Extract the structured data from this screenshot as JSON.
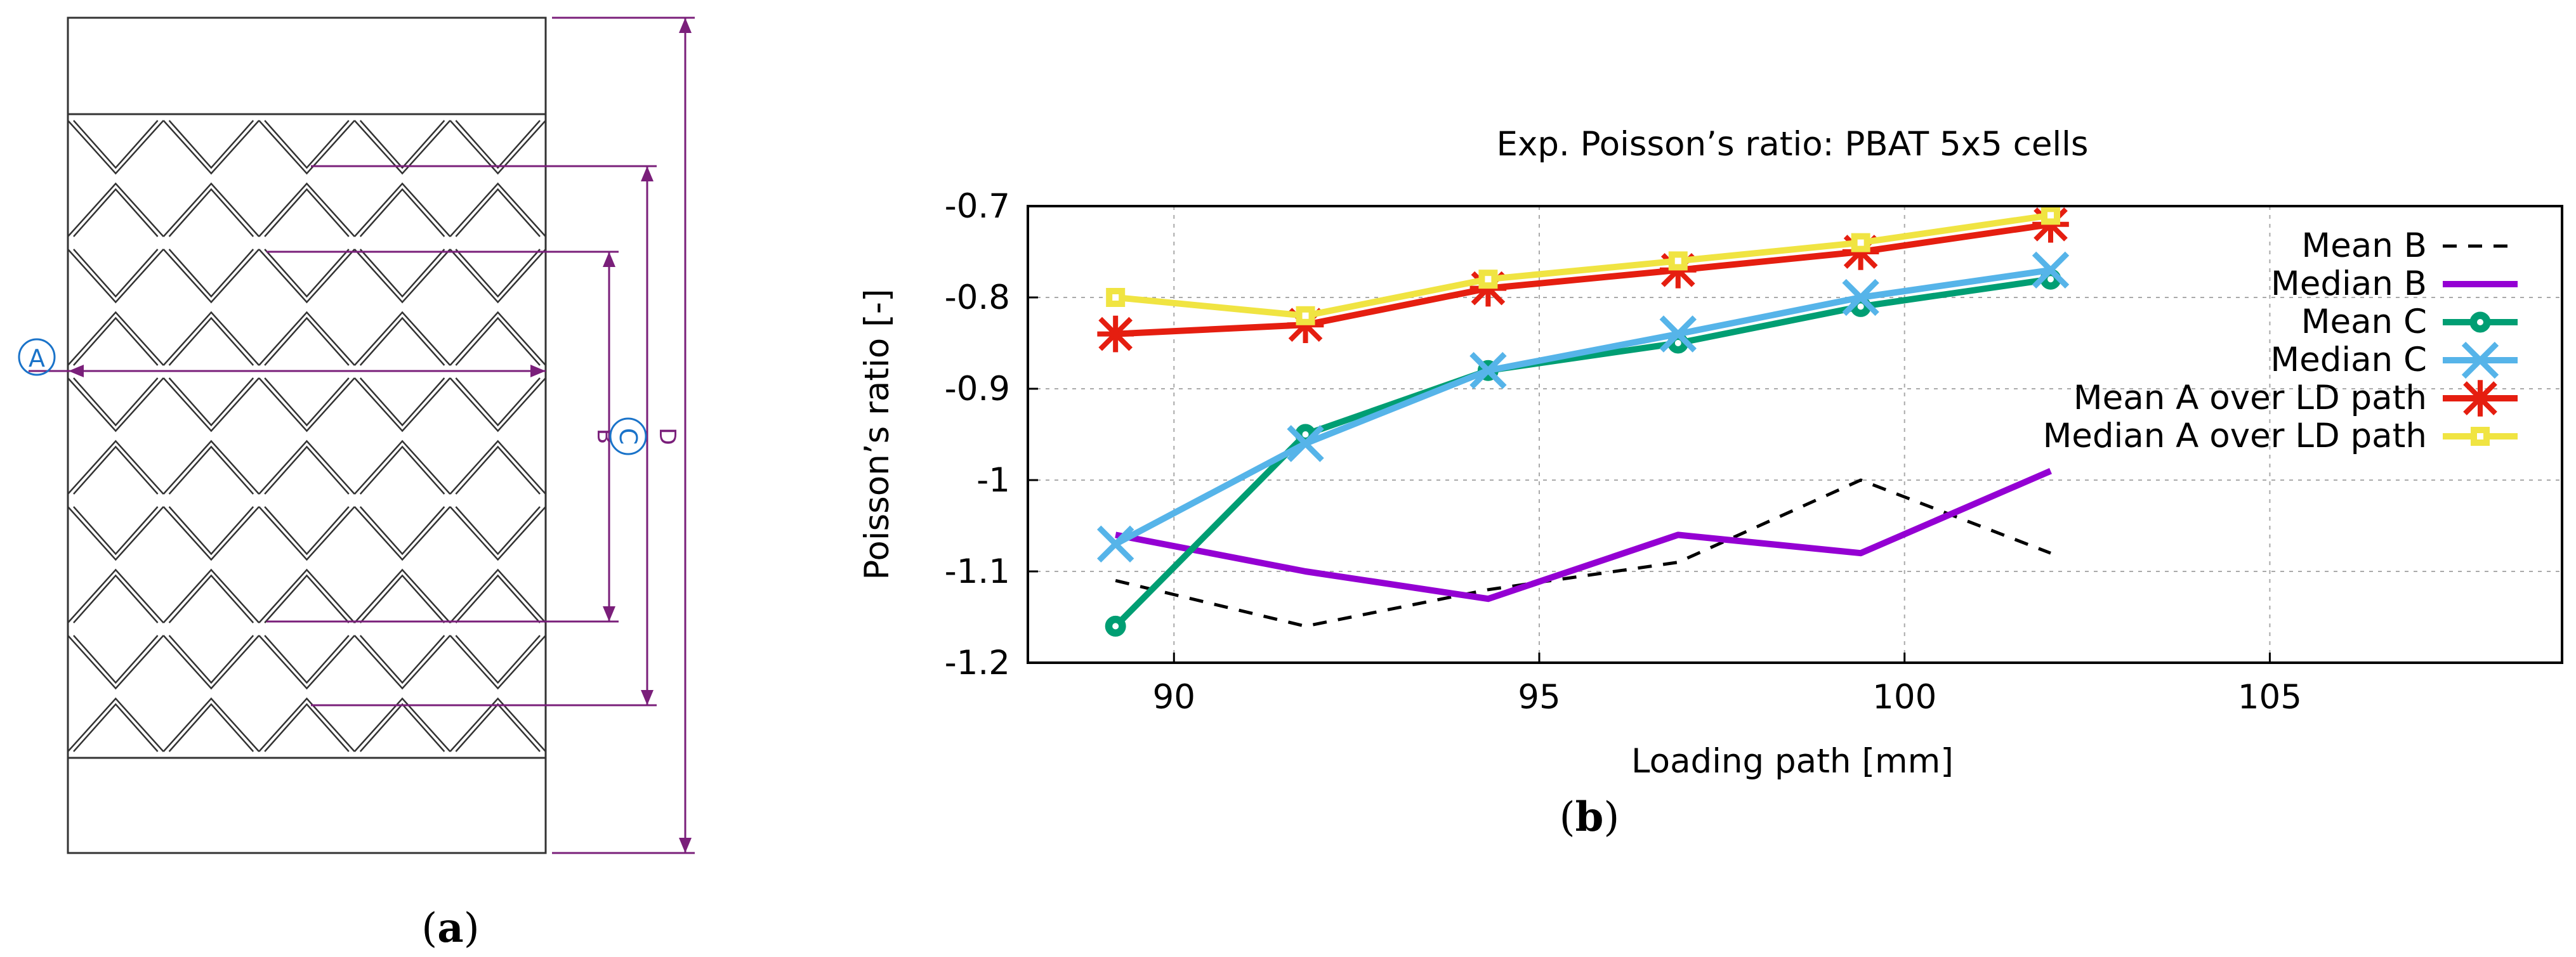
{
  "panel_a": {
    "caption_open": "(",
    "caption_letter": "a",
    "caption_close": ")",
    "dimension_labels": {
      "a": "A",
      "b": "B",
      "c": "C",
      "d": "D"
    },
    "colors": {
      "dimension": "#7a1f7a",
      "callout": "#1a73c9",
      "outline": "#333333"
    }
  },
  "panel_b": {
    "caption_open": "(",
    "caption_letter": "b",
    "caption_close": ")"
  },
  "chart_data": {
    "type": "line",
    "title": "Exp. Poisson’s ratio: PBAT 5x5 cells",
    "xlabel": "Loading path [mm]",
    "ylabel": "Poisson’s ratio [-]",
    "xlim": [
      88,
      109
    ],
    "ylim": [
      -1.2,
      -0.7
    ],
    "xticks": [
      90,
      95,
      100,
      105
    ],
    "xtick_labels": [
      "90",
      "95",
      "100",
      "105"
    ],
    "yticks": [
      -0.7,
      -0.8,
      -0.9,
      -1.0,
      -1.1,
      -1.2
    ],
    "ytick_labels": [
      "-0.7",
      "-0.8",
      "-0.9",
      "-1",
      "-1.1",
      "-1.2"
    ],
    "grid": true,
    "legend_position": "top-right",
    "series": [
      {
        "name": "Mean B",
        "color": "#000000",
        "style": "dashed",
        "marker": "none",
        "x": [
          89.2,
          91.8,
          94.3,
          96.9,
          99.4,
          102.0
        ],
        "y": [
          -1.11,
          -1.16,
          -1.12,
          -1.09,
          -1.0,
          -1.08
        ]
      },
      {
        "name": "Median B",
        "color": "#9400d3",
        "style": "solid",
        "marker": "none",
        "x": [
          89.2,
          91.8,
          94.3,
          96.9,
          99.4,
          102.0
        ],
        "y": [
          -1.06,
          -1.1,
          -1.13,
          -1.06,
          -1.08,
          -0.99
        ]
      },
      {
        "name": "Mean C",
        "color": "#009e73",
        "style": "solid",
        "marker": "circle",
        "x": [
          89.2,
          91.8,
          94.3,
          96.9,
          99.4,
          102.0
        ],
        "y": [
          -1.16,
          -0.95,
          -0.88,
          -0.85,
          -0.81,
          -0.78
        ]
      },
      {
        "name": "Median C",
        "color": "#56b4e9",
        "style": "solid",
        "marker": "x",
        "x": [
          89.2,
          91.8,
          94.3,
          96.9,
          99.4,
          102.0
        ],
        "y": [
          -1.07,
          -0.96,
          -0.88,
          -0.84,
          -0.8,
          -0.77
        ]
      },
      {
        "name": "Mean A over LD path",
        "color": "#e51e10",
        "style": "solid",
        "marker": "star",
        "x": [
          89.2,
          91.8,
          94.3,
          96.9,
          99.4,
          102.0
        ],
        "y": [
          -0.84,
          -0.83,
          -0.79,
          -0.77,
          -0.75,
          -0.72
        ]
      },
      {
        "name": "Median A over LD path",
        "color": "#f0e442",
        "style": "solid",
        "marker": "square",
        "x": [
          89.2,
          91.8,
          94.3,
          96.9,
          99.4,
          102.0
        ],
        "y": [
          -0.8,
          -0.82,
          -0.78,
          -0.76,
          -0.74,
          -0.71
        ]
      }
    ]
  }
}
